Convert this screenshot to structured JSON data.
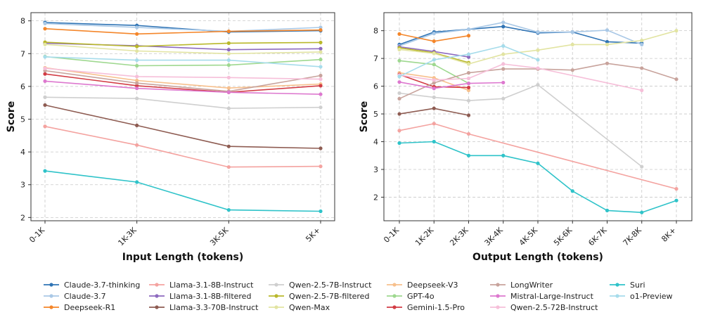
{
  "chart_data": [
    {
      "type": "line",
      "title": "",
      "xlabel": "Input Length (tokens)",
      "ylabel": "Score",
      "categories": [
        "0-1K",
        "1K-3K",
        "3K-5K",
        "5K+"
      ],
      "yticks": [
        2,
        3,
        4,
        5,
        6,
        7,
        8
      ],
      "ylim": [
        1.9,
        8.25
      ],
      "grid": true,
      "series": [
        {
          "name": "Claude-3.7-thinking",
          "values": [
            7.95,
            7.86,
            7.66,
            7.7
          ]
        },
        {
          "name": "Claude-3.7",
          "values": [
            7.92,
            7.8,
            7.68,
            7.8
          ]
        },
        {
          "name": "Deepseek-R1",
          "values": [
            7.76,
            7.6,
            7.68,
            7.72
          ]
        },
        {
          "name": "Llama-3.1-8B-Instruct",
          "values": [
            4.78,
            4.21,
            3.54,
            3.56
          ]
        },
        {
          "name": "Llama-3.1-8B-filtered",
          "values": [
            7.32,
            7.24,
            7.12,
            7.15
          ]
        },
        {
          "name": "Llama-3.3-70B-Instruct",
          "values": [
            5.43,
            4.81,
            4.17,
            4.11
          ]
        },
        {
          "name": "Qwen-2.5-7B-Instruct",
          "values": [
            5.67,
            5.63,
            5.33,
            5.36
          ]
        },
        {
          "name": "Qwen-2.5-7B-filtered",
          "values": [
            7.35,
            7.22,
            7.32,
            7.34
          ]
        },
        {
          "name": "Qwen-Max",
          "values": [
            7.28,
            7.08,
            7.0,
            7.05
          ]
        },
        {
          "name": "Deepseek-V3",
          "values": [
            6.57,
            6.18,
            5.95,
            6.07
          ]
        },
        {
          "name": "GPT-4o",
          "values": [
            6.91,
            6.63,
            6.65,
            6.82
          ]
        },
        {
          "name": "Gemini-1.5-Pro",
          "values": [
            6.38,
            6.02,
            5.82,
            6.02
          ]
        },
        {
          "name": "LongWriter",
          "values": [
            6.48,
            6.1,
            5.85,
            6.33
          ]
        },
        {
          "name": "Mistral-Large-Instruct",
          "values": [
            6.16,
            5.94,
            5.82,
            5.76
          ]
        },
        {
          "name": "Qwen-2.5-72B-Instruct",
          "values": [
            6.55,
            6.3,
            6.27,
            6.22
          ]
        },
        {
          "name": "Suri",
          "values": [
            3.42,
            3.08,
            2.23,
            2.19
          ]
        },
        {
          "name": "o1-Preview",
          "values": [
            6.9,
            6.8,
            6.8,
            6.6
          ]
        }
      ]
    },
    {
      "type": "line",
      "title": "",
      "xlabel": "Output Length (tokens)",
      "ylabel": "Score",
      "categories": [
        "0-1K",
        "1K-2K",
        "2K-3K",
        "3K-4K",
        "4K-5K",
        "5K-6K",
        "6K-7K",
        "7K-8K",
        "8K+"
      ],
      "yticks": [
        2,
        3,
        4,
        5,
        6,
        7,
        8
      ],
      "ylim": [
        1.15,
        8.65
      ],
      "grid": true,
      "series": [
        {
          "name": "Claude-3.7-thinking",
          "values": [
            7.5,
            7.95,
            8.05,
            8.15,
            7.92,
            7.95,
            7.6,
            7.55,
            null
          ]
        },
        {
          "name": "Claude-3.7",
          "values": [
            7.45,
            7.9,
            8.05,
            8.3,
            7.95,
            7.95,
            8.02,
            7.5,
            null
          ]
        },
        {
          "name": "Deepseek-R1",
          "values": [
            7.88,
            7.62,
            7.82,
            null,
            null,
            null,
            null,
            null,
            null
          ]
        },
        {
          "name": "Llama-3.1-8B-Instruct",
          "values": [
            4.4,
            4.65,
            4.28,
            null,
            null,
            null,
            null,
            null,
            2.3
          ]
        },
        {
          "name": "Llama-3.1-8B-filtered",
          "values": [
            7.42,
            7.25,
            7.05,
            null,
            null,
            null,
            null,
            null,
            null
          ]
        },
        {
          "name": "Llama-3.3-70B-Instruct",
          "values": [
            5.0,
            5.2,
            4.95,
            null,
            null,
            null,
            null,
            null,
            null
          ]
        },
        {
          "name": "Qwen-2.5-7B-Instruct",
          "values": [
            5.75,
            5.6,
            5.48,
            5.55,
            6.05,
            null,
            null,
            3.1,
            null
          ]
        },
        {
          "name": "Qwen-2.5-7B-filtered",
          "values": [
            7.38,
            7.2,
            6.85,
            null,
            null,
            null,
            null,
            null,
            null
          ]
        },
        {
          "name": "Qwen-Max",
          "values": [
            7.32,
            7.18,
            6.8,
            7.15,
            7.3,
            7.5,
            7.5,
            7.65,
            8.0
          ]
        },
        {
          "name": "Deepseek-V3",
          "values": [
            6.48,
            6.3,
            5.85,
            null,
            null,
            null,
            null,
            null,
            null
          ]
        },
        {
          "name": "GPT-4o",
          "values": [
            6.92,
            6.78,
            6.1,
            null,
            null,
            null,
            null,
            null,
            null
          ]
        },
        {
          "name": "Gemini-1.5-Pro",
          "values": [
            6.42,
            5.98,
            5.95,
            null,
            null,
            null,
            null,
            null,
            null
          ]
        },
        {
          "name": "LongWriter",
          "values": [
            5.55,
            6.12,
            6.48,
            6.62,
            6.62,
            6.58,
            6.82,
            6.65,
            6.25
          ]
        },
        {
          "name": "Mistral-Large-Instruct",
          "values": [
            6.15,
            5.92,
            6.1,
            6.13,
            null,
            null,
            null,
            null,
            null
          ]
        },
        {
          "name": "Qwen-2.5-72B-Instruct",
          "values": [
            6.4,
            6.22,
            6.28,
            6.8,
            6.65,
            null,
            null,
            5.85,
            null
          ]
        },
        {
          "name": "Suri",
          "values": [
            3.95,
            4.0,
            3.5,
            3.5,
            3.22,
            2.22,
            1.52,
            1.45,
            1.88
          ]
        },
        {
          "name": "o1-Preview",
          "values": [
            6.35,
            6.95,
            7.15,
            7.45,
            6.95,
            null,
            null,
            null,
            null
          ]
        }
      ]
    }
  ],
  "legend": [
    {
      "name": "Claude-3.7-thinking",
      "color": "#2f74b5"
    },
    {
      "name": "Claude-3.7",
      "color": "#a9c8e6"
    },
    {
      "name": "Deepseek-R1",
      "color": "#f4862a"
    },
    {
      "name": "Llama-3.1-8B-Instruct",
      "color": "#f4a3a0"
    },
    {
      "name": "Llama-3.1-8B-filtered",
      "color": "#8d6abf"
    },
    {
      "name": "Llama-3.3-70B-Instruct",
      "color": "#8e5c52"
    },
    {
      "name": "Qwen-2.5-7B-Instruct",
      "color": "#cfcfcf"
    },
    {
      "name": "Qwen-2.5-7B-filtered",
      "color": "#b9b82b"
    },
    {
      "name": "Qwen-Max",
      "color": "#e2e4a2"
    },
    {
      "name": "Deepseek-V3",
      "color": "#f7c08d"
    },
    {
      "name": "GPT-4o",
      "color": "#9ed88f"
    },
    {
      "name": "Gemini-1.5-Pro",
      "color": "#d23c44"
    },
    {
      "name": "LongWriter",
      "color": "#c8a39c"
    },
    {
      "name": "Mistral-Large-Instruct",
      "color": "#dd78cf"
    },
    {
      "name": "Qwen-2.5-72B-Instruct",
      "color": "#f6bfd9"
    },
    {
      "name": "Suri",
      "color": "#2fc3c9"
    },
    {
      "name": "o1-Preview",
      "color": "#a6dceb"
    }
  ]
}
